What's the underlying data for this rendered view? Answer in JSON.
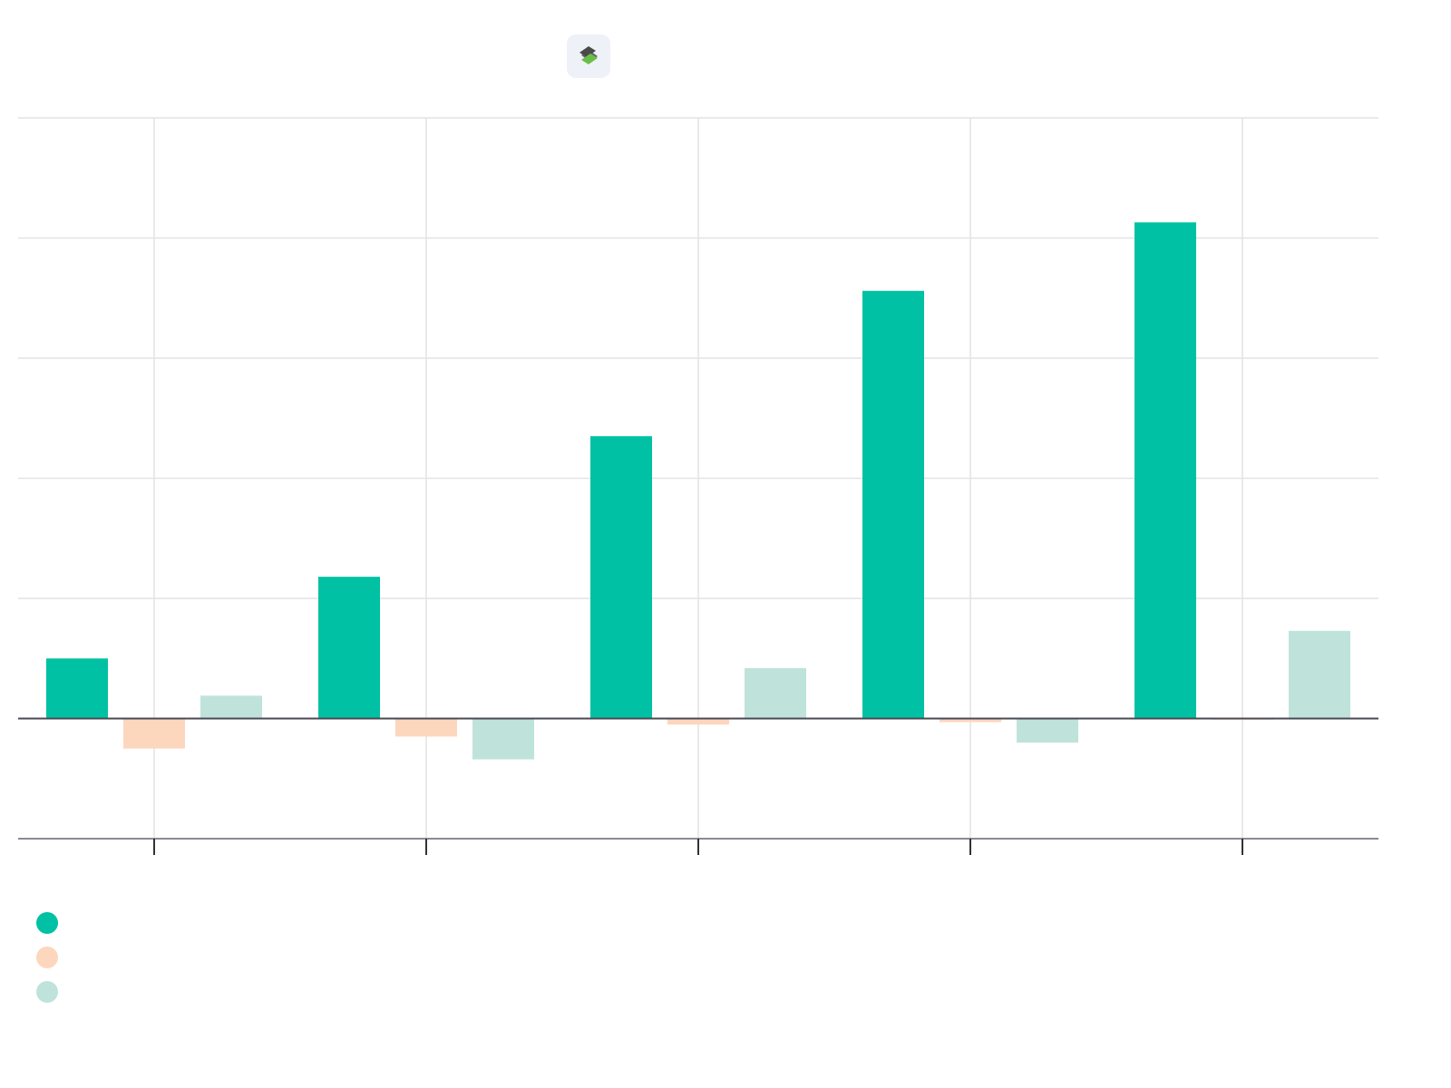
{
  "chart_data": {
    "type": "bar",
    "title": "",
    "xlabel": "",
    "ylabel": "",
    "categories": [
      "",
      "",
      "",
      "",
      ""
    ],
    "ylim": [
      -1,
      5
    ],
    "grid": true,
    "legend_position": "bottom-left",
    "series": [
      {
        "name": "",
        "color": "#00c1a3",
        "values": [
          0.5,
          1.18,
          2.35,
          3.56,
          4.13
        ]
      },
      {
        "name": "",
        "color": "#fdd6be",
        "values": [
          -0.25,
          -0.15,
          -0.05,
          -0.03,
          -0.01
        ]
      },
      {
        "name": "",
        "color": "#bfe3da",
        "values": [
          0.19,
          -0.34,
          0.42,
          -0.2,
          0.73
        ]
      }
    ]
  },
  "logo": {
    "icon": "spreadsheet-s-icon",
    "colors": [
      "#4a4a4a",
      "#6abe45"
    ]
  }
}
